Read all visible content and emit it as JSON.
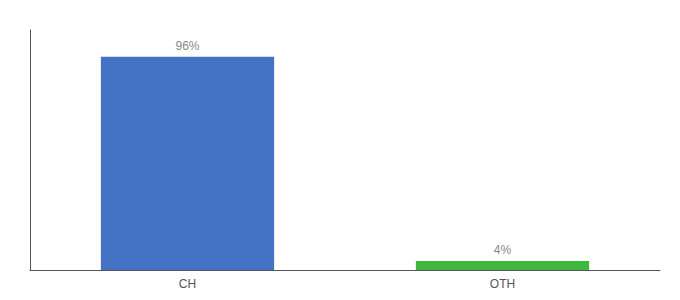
{
  "chart_data": {
    "type": "bar",
    "categories": [
      "CH",
      "OTH"
    ],
    "values": [
      96,
      4
    ],
    "value_labels": [
      "96%",
      "4%"
    ],
    "colors": [
      "#4472c4",
      "#3db83d"
    ],
    "ylim": [
      0,
      108
    ],
    "grid": false,
    "data_labels": true,
    "tick_labels": "x"
  }
}
